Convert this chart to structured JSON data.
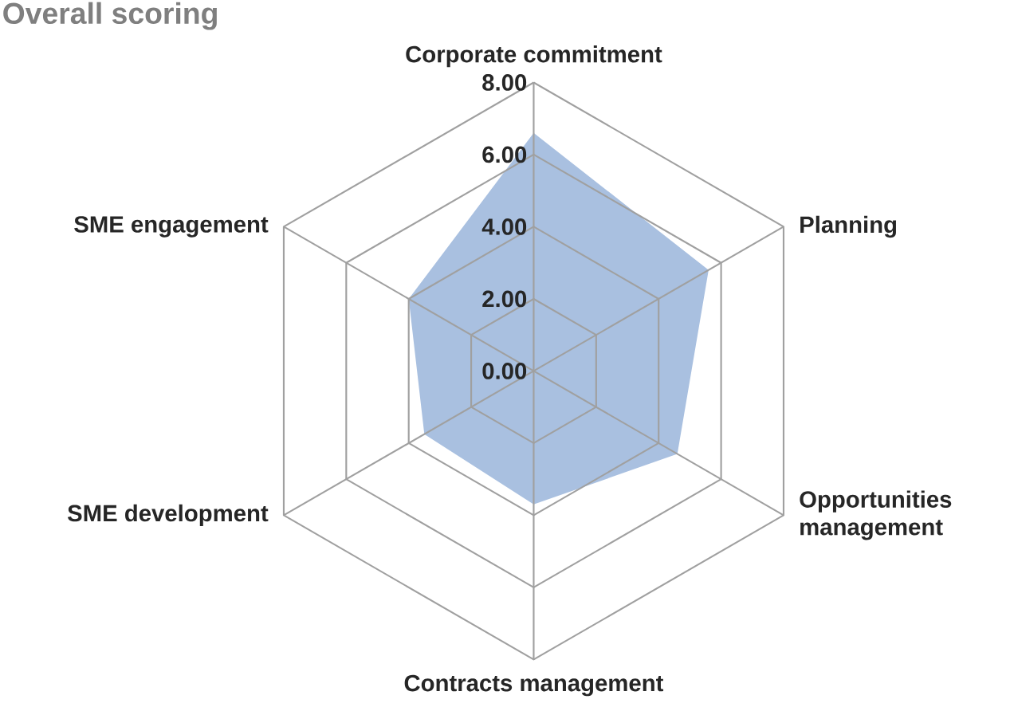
{
  "chart_data": {
    "type": "radar",
    "title": "Overall scoring",
    "categories": [
      "Corporate commitment",
      "Planning",
      "Opportunities management",
      "Contracts management",
      "SME development",
      "SME engagement"
    ],
    "series": [
      {
        "color": "#a9c0e0",
        "values": [
          6.6,
          5.6,
          4.6,
          3.7,
          3.5,
          4.0
        ]
      }
    ],
    "ylim": [
      0,
      8
    ],
    "yticks": [
      {
        "value": 0,
        "label": "0.00"
      },
      {
        "value": 2,
        "label": "2.00"
      },
      {
        "value": 4,
        "label": "4.00"
      },
      {
        "value": 6,
        "label": "6.00"
      },
      {
        "value": 8,
        "label": "8.00"
      }
    ]
  }
}
